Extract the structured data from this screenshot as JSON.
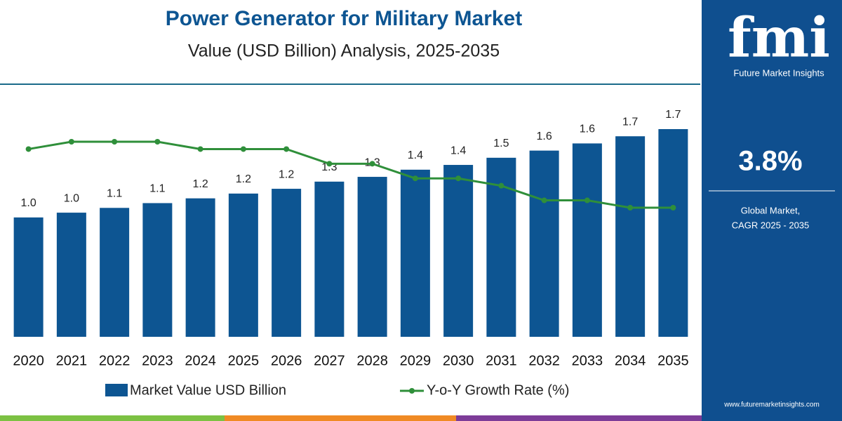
{
  "chart_data": {
    "type": "bar-line",
    "title": "Power Generator for Military Market",
    "subtitle": "Value (USD Billion) Analysis, 2025-2035",
    "categories": [
      "2020",
      "2021",
      "2022",
      "2023",
      "2024",
      "2025",
      "2026",
      "2027",
      "2028",
      "2029",
      "2030",
      "2031",
      "2032",
      "2033",
      "2034",
      "2035"
    ],
    "series": [
      {
        "name": "Market Value USD Billion",
        "type": "bar",
        "color": "#0d5592",
        "values": [
          1.0,
          1.04,
          1.08,
          1.12,
          1.16,
          1.2,
          1.24,
          1.3,
          1.34,
          1.4,
          1.44,
          1.5,
          1.56,
          1.62,
          1.68,
          1.74
        ],
        "value_labels": [
          "1.0",
          "1.0",
          "1.1",
          "1.1",
          "1.2",
          "1.2",
          "1.2",
          "1.3",
          "1.3",
          "1.4",
          "1.4",
          "1.5",
          "1.6",
          "1.6",
          "1.7",
          "1.7"
        ]
      },
      {
        "name": "Y-o-Y Growth Rate (%)",
        "type": "line",
        "color": "#2f8f3a",
        "axis": "y2",
        "values": [
          4.1,
          4.2,
          4.2,
          4.2,
          4.1,
          4.1,
          4.1,
          3.9,
          3.9,
          3.7,
          3.7,
          3.6,
          3.4,
          3.4,
          3.3,
          3.3
        ]
      }
    ]
  },
  "sidebar": {
    "logo": "fmi",
    "brand": "Future Market Insights",
    "cagr": "3.8%",
    "cagr_label": [
      "Global Market,",
      "CAGR 2025 - 2035"
    ],
    "url": "www.futuremarketinsights.com"
  }
}
